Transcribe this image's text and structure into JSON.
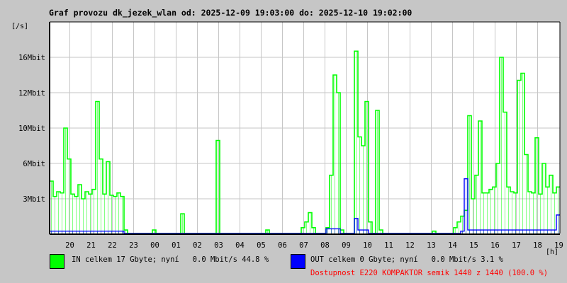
{
  "chart_data": {
    "type": "line",
    "title": "Graf provozu dk_jezek_wlan od: 2025-12-09 19:03:00 do: 2025-12-10 19:02:00",
    "ylabel": "[/s]",
    "xlabel": "[h]",
    "y_ticks": [
      "3Mbit",
      "6Mbit",
      "10Mbit",
      "12Mbit",
      "16Mbit"
    ],
    "y_tick_values": [
      3,
      6,
      10,
      12,
      16
    ],
    "x_ticks": [
      "20",
      "21",
      "22",
      "23",
      "00",
      "01",
      "02",
      "03",
      "04",
      "05",
      "06",
      "07",
      "08",
      "09",
      "10",
      "11",
      "12",
      "13",
      "14",
      "15",
      "16",
      "17",
      "18",
      "19"
    ],
    "grid": true,
    "x": [
      "19:03",
      "19:13",
      "19:23",
      "19:33",
      "19:43",
      "19:53",
      "20:03",
      "20:13",
      "20:23",
      "20:33",
      "20:43",
      "20:53",
      "21:03",
      "21:13",
      "21:23",
      "21:33",
      "21:43",
      "21:53",
      "22:03",
      "22:13",
      "22:23",
      "22:33",
      "22:43",
      "22:53",
      "23:03",
      "23:13",
      "23:23",
      "23:33",
      "23:43",
      "23:53",
      "00:03",
      "00:13",
      "00:23",
      "00:33",
      "00:43",
      "00:53",
      "01:03",
      "01:13",
      "01:23",
      "01:33",
      "01:43",
      "01:53",
      "02:03",
      "02:13",
      "02:23",
      "02:33",
      "02:43",
      "02:53",
      "03:03",
      "03:13",
      "03:23",
      "03:33",
      "03:43",
      "03:53",
      "04:03",
      "04:13",
      "04:23",
      "04:33",
      "04:43",
      "04:53",
      "05:03",
      "05:13",
      "05:23",
      "05:33",
      "05:43",
      "05:53",
      "06:03",
      "06:13",
      "06:23",
      "06:33",
      "06:43",
      "06:53",
      "07:03",
      "07:13",
      "07:23",
      "07:33",
      "07:43",
      "07:53",
      "08:03",
      "08:13",
      "08:23",
      "08:33",
      "08:43",
      "08:53",
      "09:03",
      "09:13",
      "09:23",
      "09:33",
      "09:43",
      "09:53",
      "10:03",
      "10:13",
      "10:23",
      "10:33",
      "10:43",
      "10:53",
      "11:03",
      "11:13",
      "11:23",
      "11:33",
      "11:43",
      "11:53",
      "12:03",
      "12:13",
      "12:23",
      "12:33",
      "12:43",
      "12:53",
      "13:03",
      "13:13",
      "13:23",
      "13:33",
      "13:43",
      "13:53",
      "14:03",
      "14:13",
      "14:23",
      "14:33",
      "14:43",
      "14:53",
      "15:03",
      "15:13",
      "15:23",
      "15:33",
      "15:43",
      "15:53",
      "16:03",
      "16:13",
      "16:23",
      "16:33",
      "16:43",
      "16:53",
      "17:03",
      "17:13",
      "17:23",
      "17:33",
      "17:43",
      "17:53",
      "18:03",
      "18:13",
      "18:23",
      "18:33",
      "18:43",
      "18:53"
    ],
    "series": [
      {
        "name": "IN",
        "color": "#00ff00",
        "unit": "Mbit/s",
        "values": [
          4.5,
          3.2,
          3.6,
          3.5,
          10,
          6.5,
          3.4,
          3.2,
          4.2,
          3.0,
          3.6,
          3.4,
          3.8,
          11.5,
          6.5,
          3.4,
          6.2,
          3.3,
          3.2,
          3.5,
          3.2,
          0.3,
          0,
          0,
          0,
          0,
          0,
          0,
          0,
          0.3,
          0,
          0,
          0,
          0,
          0,
          0,
          0,
          1.7,
          0,
          0,
          0,
          0,
          0,
          0,
          0,
          0,
          0,
          8.6,
          0,
          0,
          0,
          0,
          0,
          0,
          0,
          0,
          0,
          0,
          0,
          0,
          0,
          0.3,
          0,
          0,
          0,
          0,
          0,
          0,
          0,
          0,
          0,
          0.5,
          1,
          1.8,
          0.5,
          0,
          0,
          0,
          0.5,
          5,
          14,
          12,
          0.3,
          0,
          0,
          0,
          16.7,
          9,
          8,
          11.5,
          1,
          0,
          11,
          0.3,
          0,
          0,
          0,
          0,
          0,
          0,
          0,
          0,
          0,
          0,
          0,
          0,
          0,
          0,
          0.2,
          0,
          0,
          0,
          0,
          0,
          0.5,
          1,
          1.5,
          2,
          10.7,
          3,
          5,
          10.4,
          3.5,
          3.5,
          3.8,
          4,
          6,
          16,
          10.9,
          4,
          3.6,
          3.5,
          13.4,
          14.2,
          7,
          3.6,
          3.5,
          8.9,
          3.4,
          6,
          4,
          5,
          3.5,
          4
        ]
      },
      {
        "name": "OUT",
        "color": "#0000ff",
        "unit": "Mbit/s",
        "values": [
          0.2,
          0.2,
          0.2,
          0.2,
          0.2,
          0.2,
          0.2,
          0.2,
          0.2,
          0.2,
          0.2,
          0.2,
          0.2,
          0.2,
          0.2,
          0.2,
          0.2,
          0.2,
          0.2,
          0.2,
          0.2,
          0,
          0,
          0,
          0,
          0,
          0,
          0,
          0,
          0,
          0,
          0,
          0,
          0,
          0,
          0,
          0,
          0,
          0,
          0,
          0,
          0,
          0,
          0,
          0,
          0,
          0,
          0,
          0,
          0,
          0,
          0,
          0,
          0,
          0,
          0,
          0,
          0,
          0,
          0,
          0,
          0,
          0,
          0,
          0,
          0,
          0,
          0,
          0,
          0,
          0,
          0,
          0,
          0,
          0,
          0,
          0,
          0,
          0.4,
          0.4,
          0.4,
          0.4,
          0,
          0,
          0,
          0,
          1.3,
          0.3,
          0.3,
          0.3,
          0,
          0,
          0,
          0,
          0,
          0,
          0,
          0,
          0,
          0,
          0,
          0,
          0,
          0,
          0,
          0,
          0,
          0,
          0,
          0,
          0,
          0,
          0,
          0,
          0,
          0,
          0.2,
          4.7,
          0.3,
          0.3,
          0.3,
          0.3,
          0.3,
          0.3,
          0.3,
          0.3,
          0.3,
          0.3,
          0.3,
          0.3,
          0.3,
          0.3,
          0.3,
          0.3,
          0.3,
          0.3,
          0.3,
          0.3,
          0.3,
          0.3,
          0.3,
          0.3,
          0.3,
          1.6
        ]
      }
    ]
  },
  "legend": {
    "in_text": "IN celkem 17 Gbyte; nyní   0.0 Mbit/s 44.8 %",
    "out_text": "OUT celkem 0 Gbyte; nyní   0.0 Mbit/s 3.1 %",
    "in_color": "#00ff00",
    "out_color": "#0000ff"
  },
  "availability": "Dostupnost E220 KOMPAKTOR semik 1440 z 1440 (100.0 %)",
  "availability_color": "#ff0000"
}
